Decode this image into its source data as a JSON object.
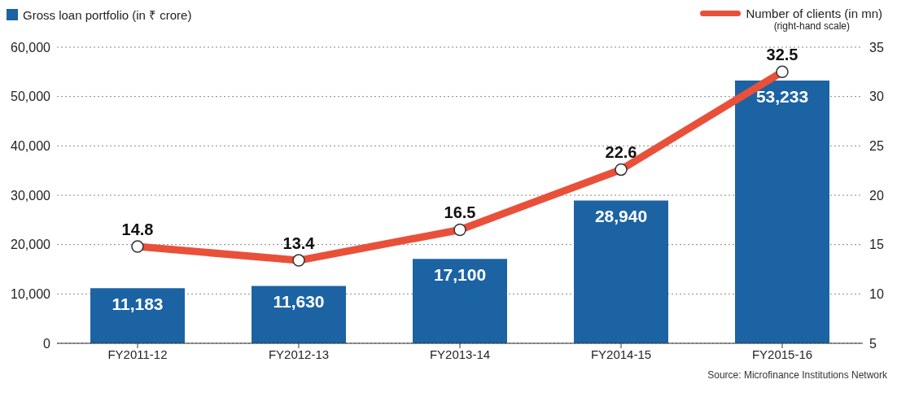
{
  "chart_data": {
    "type": "bar",
    "categories": [
      "FY2011-12",
      "FY2012-13",
      "FY2013-14",
      "FY2014-15",
      "FY2015-16"
    ],
    "series": [
      {
        "name": "Gross loan portfolio (in ₹ crore)",
        "color": "#1c63a3",
        "values": [
          11183,
          11630,
          17100,
          28940,
          53233
        ],
        "value_labels": [
          "11,183",
          "11,630",
          "17,100",
          "28,940",
          "53,233"
        ]
      },
      {
        "name": "Number of clients (in mn)",
        "type": "line",
        "axis": "y2",
        "color": "#e9503a",
        "marker": "circle",
        "values": [
          14.8,
          13.4,
          16.5,
          22.6,
          32.5
        ]
      }
    ],
    "ylim": [
      0,
      60000
    ],
    "yticks": [
      0,
      {
        "value": 10000,
        "label": "10,000"
      },
      {
        "value": 20000,
        "label": "20,000"
      },
      {
        "value": 30000,
        "label": "30,000"
      },
      {
        "value": 40000,
        "label": "40,000"
      },
      {
        "value": 50000,
        "label": "50,000"
      },
      {
        "value": 60000,
        "label": "60,000"
      }
    ],
    "y2lim": [
      5,
      35
    ],
    "y2ticks": [
      5,
      10,
      15,
      20,
      25,
      30,
      35
    ],
    "grid": "y",
    "legend": "top",
    "data_labels": true,
    "annotations": [
      "(right-hand scale)",
      "Source: Microfinance Institutions Network"
    ]
  }
}
